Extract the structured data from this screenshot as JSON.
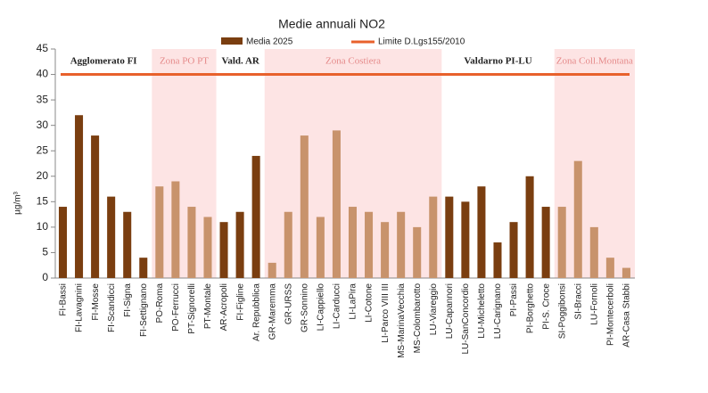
{
  "chart_data": {
    "type": "bar",
    "title": "Medie annuali NO2",
    "y_label": "µg/m³",
    "categories": [
      "FI-Bassi",
      "FI-Lavagnini",
      "FI-Mosse",
      "FI-Scandicci",
      "FI-Signa",
      "FI-Settignano",
      "PO-Roma",
      "PO-Ferrucci",
      "PT-Signorelli",
      "PT-Montale",
      "AR-Acropoli",
      "FI-Figline",
      "Ar. Repubblica",
      "GR-Maremma",
      "GR-URSS",
      "GR-Sonnino",
      "LI-Cappiello",
      "LI-Carducci",
      "LI-LaPira",
      "LI-Cotone",
      "LI-Parco VIII III",
      "MS-MarinaVecchia",
      "MS-Colombarotto",
      "LU-Viareggio",
      "LU-Capannori",
      "LU-SanConcordio",
      "LU-Micheletto",
      "LU-Carignano",
      "PI-Passi",
      "PI-Borghetto",
      "PI-S. Croce",
      "SI-Poggibonsi",
      "SI-Bracci",
      "LU-Fornoli",
      "PI-Montecerboli",
      "AR-Casa Stabbi"
    ],
    "series": [
      {
        "name": "Media 2025",
        "color": "#7a3e10",
        "shaded_color": "#c8936c",
        "values": [
          14,
          32,
          28,
          16,
          13,
          4,
          18,
          19,
          14,
          12,
          11,
          13,
          24,
          3,
          13,
          28,
          12,
          29,
          14,
          13,
          11,
          13,
          10,
          16,
          16,
          15,
          18,
          7,
          11,
          20,
          14,
          14,
          23,
          10,
          4,
          2
        ]
      }
    ],
    "limit": {
      "name": "Limite D.Lgs155/2010",
      "value": 40,
      "color": "#e8612c"
    },
    "zones": [
      {
        "label": "Agglomerato FI",
        "from": "FI-Bassi",
        "to": "FI-Settignano",
        "shaded": false
      },
      {
        "label": "Zona PO PT",
        "from": "PO-Roma",
        "to": "PT-Montale",
        "shaded": true
      },
      {
        "label": "Vald. AR",
        "from": "AR-Acropoli",
        "to": "Ar. Repubblica",
        "shaded": false
      },
      {
        "label": "Zona Costiera",
        "from": "GR-Maremma",
        "to": "LU-Viareggio",
        "shaded": true
      },
      {
        "label": "Valdarno PI-LU",
        "from": "LU-Capannori",
        "to": "PI-S. Croce",
        "shaded": false
      },
      {
        "label": "Zona Coll.Montana",
        "from": "SI-Poggibonsi",
        "to": "AR-Casa Stabbi",
        "shaded": true
      }
    ],
    "zone_shade_color": "#fde4e4",
    "ylim": [
      0,
      45
    ],
    "yticks": [
      0,
      5,
      10,
      15,
      20,
      25,
      30,
      35,
      40,
      45
    ]
  }
}
